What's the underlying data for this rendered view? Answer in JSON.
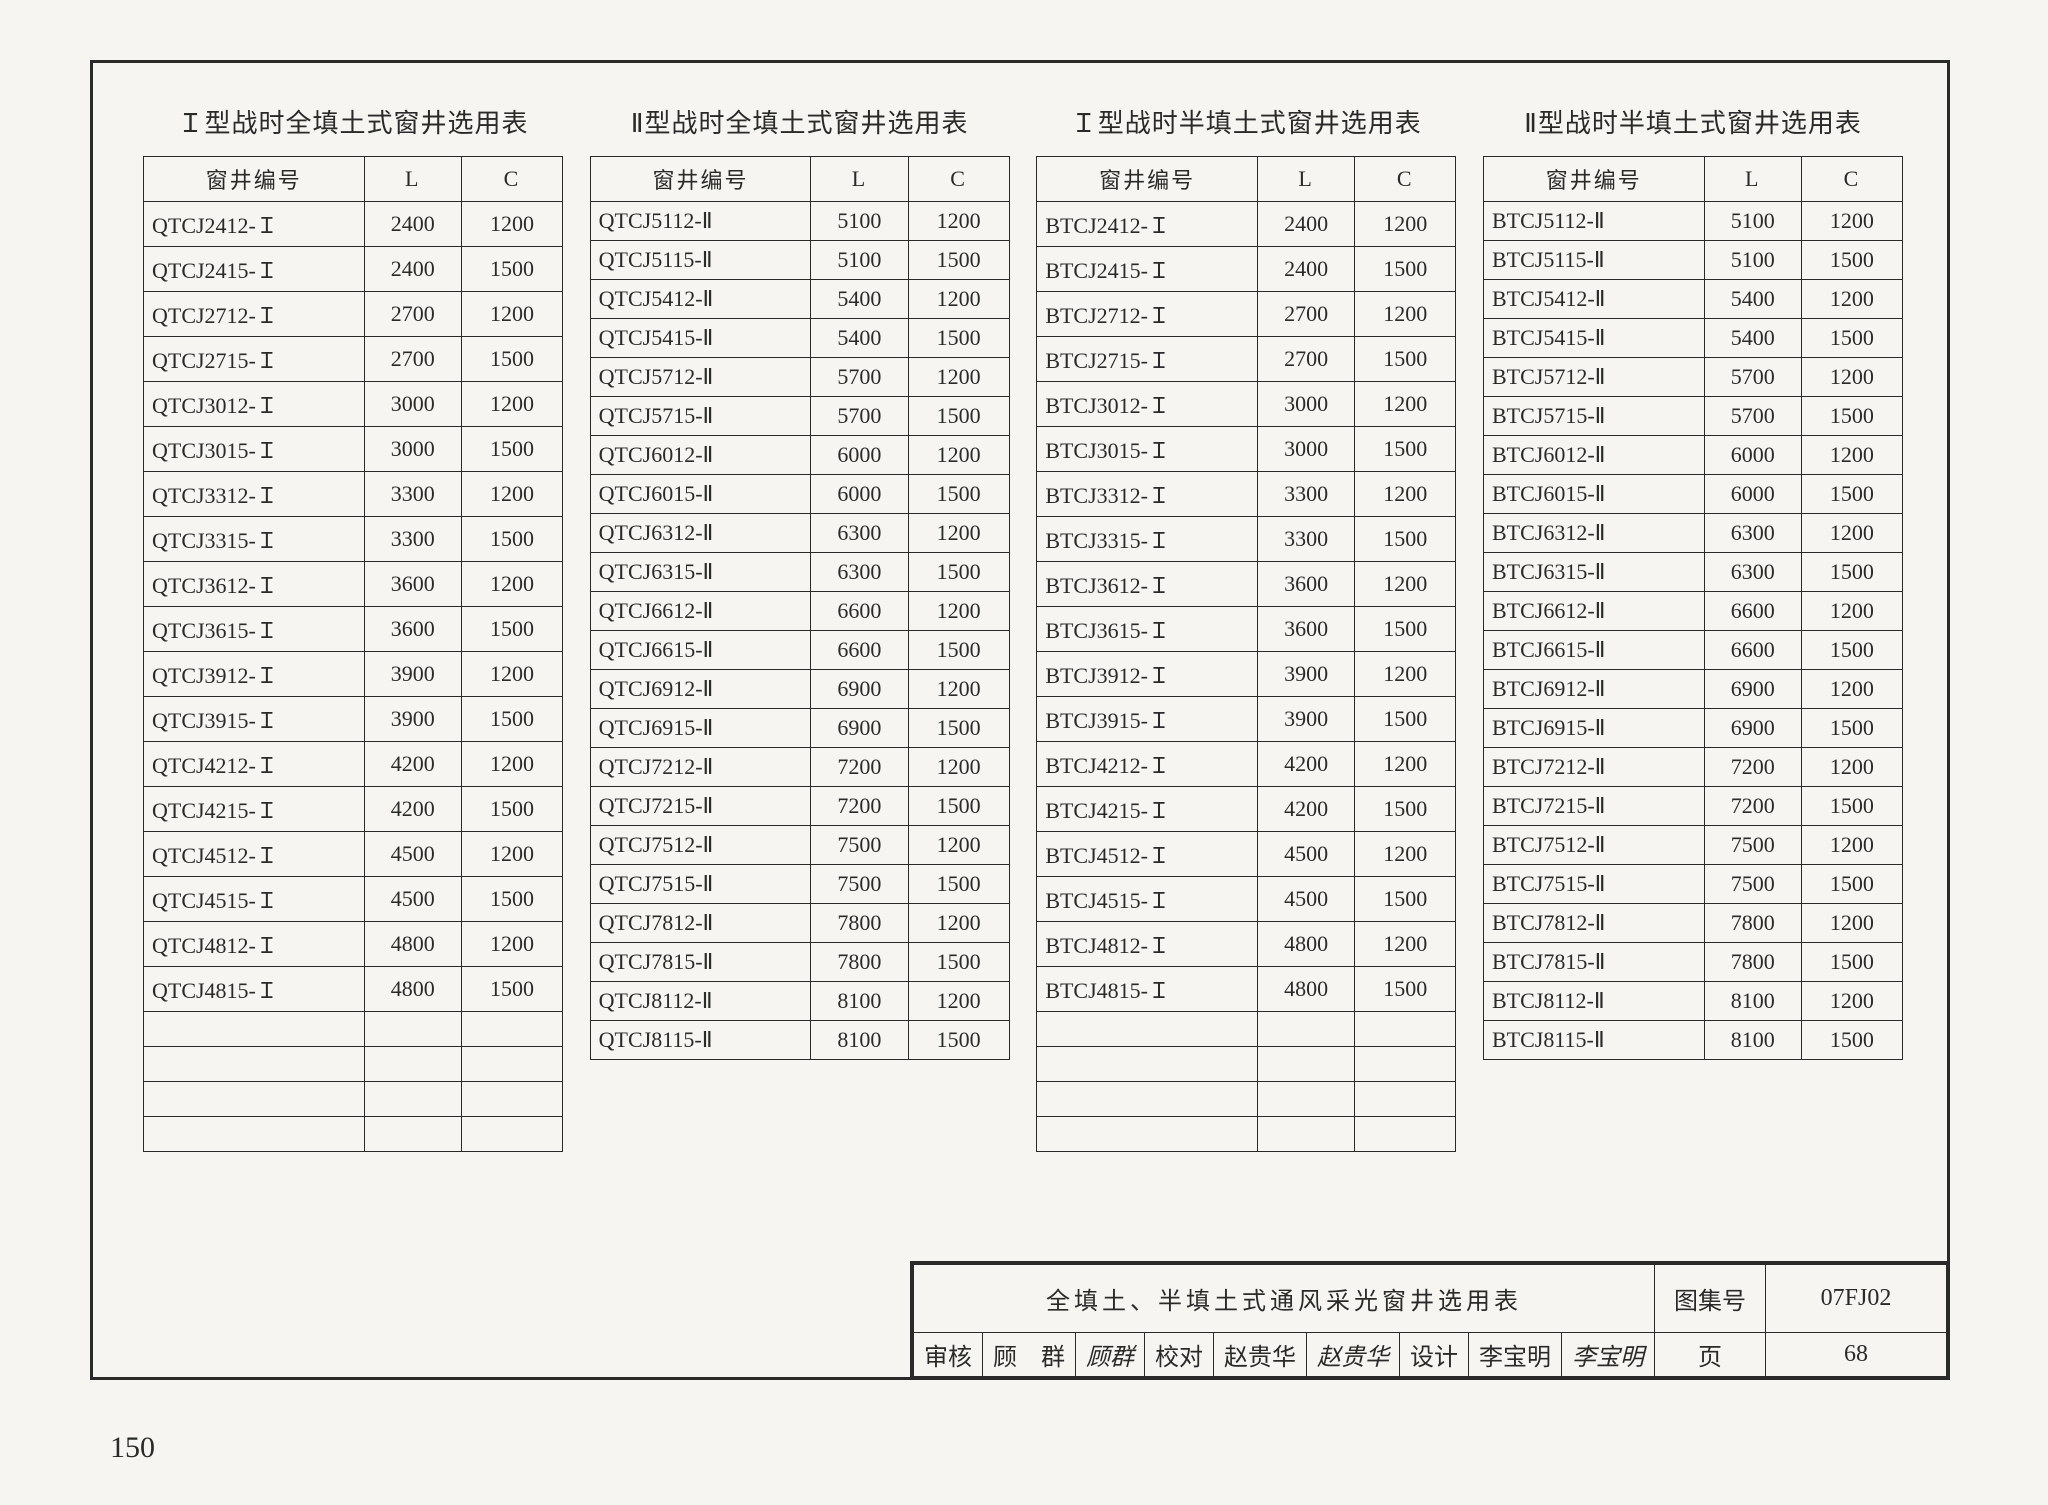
{
  "page_number": "150",
  "footer": {
    "main_title": "全填土、半填土式通风采光窗井选用表",
    "atlas_label": "图集号",
    "atlas_value": "07FJ02",
    "page_label": "页",
    "page_value": "68",
    "review_label": "审核",
    "review_name": "顾　群",
    "review_sig": "顾群",
    "check_label": "校对",
    "check_name": "赵贵华",
    "check_sig": "赵贵华",
    "design_label": "设计",
    "design_name": "李宝明",
    "design_sig": "李宝明"
  },
  "column_headers": {
    "id": "窗井编号",
    "L": "L",
    "C": "C"
  },
  "tables": [
    {
      "title": "Ｉ型战时全填土式窗井选用表",
      "rows": [
        {
          "id": "QTCJ2412-Ｉ",
          "L": "2400",
          "C": "1200"
        },
        {
          "id": "QTCJ2415-Ｉ",
          "L": "2400",
          "C": "1500"
        },
        {
          "id": "QTCJ2712-Ｉ",
          "L": "2700",
          "C": "1200"
        },
        {
          "id": "QTCJ2715-Ｉ",
          "L": "2700",
          "C": "1500"
        },
        {
          "id": "QTCJ3012-Ｉ",
          "L": "3000",
          "C": "1200"
        },
        {
          "id": "QTCJ3015-Ｉ",
          "L": "3000",
          "C": "1500"
        },
        {
          "id": "QTCJ3312-Ｉ",
          "L": "3300",
          "C": "1200"
        },
        {
          "id": "QTCJ3315-Ｉ",
          "L": "3300",
          "C": "1500"
        },
        {
          "id": "QTCJ3612-Ｉ",
          "L": "3600",
          "C": "1200"
        },
        {
          "id": "QTCJ3615-Ｉ",
          "L": "3600",
          "C": "1500"
        },
        {
          "id": "QTCJ3912-Ｉ",
          "L": "3900",
          "C": "1200"
        },
        {
          "id": "QTCJ3915-Ｉ",
          "L": "3900",
          "C": "1500"
        },
        {
          "id": "QTCJ4212-Ｉ",
          "L": "4200",
          "C": "1200"
        },
        {
          "id": "QTCJ4215-Ｉ",
          "L": "4200",
          "C": "1500"
        },
        {
          "id": "QTCJ4512-Ｉ",
          "L": "4500",
          "C": "1200"
        },
        {
          "id": "QTCJ4515-Ｉ",
          "L": "4500",
          "C": "1500"
        },
        {
          "id": "QTCJ4812-Ｉ",
          "L": "4800",
          "C": "1200"
        },
        {
          "id": "QTCJ4815-Ｉ",
          "L": "4800",
          "C": "1500"
        },
        {
          "id": "",
          "L": "",
          "C": ""
        },
        {
          "id": "",
          "L": "",
          "C": ""
        },
        {
          "id": "",
          "L": "",
          "C": ""
        },
        {
          "id": "",
          "L": "",
          "C": ""
        }
      ]
    },
    {
      "title": "Ⅱ型战时全填土式窗井选用表",
      "rows": [
        {
          "id": "QTCJ5112-Ⅱ",
          "L": "5100",
          "C": "1200"
        },
        {
          "id": "QTCJ5115-Ⅱ",
          "L": "5100",
          "C": "1500"
        },
        {
          "id": "QTCJ5412-Ⅱ",
          "L": "5400",
          "C": "1200"
        },
        {
          "id": "QTCJ5415-Ⅱ",
          "L": "5400",
          "C": "1500"
        },
        {
          "id": "QTCJ5712-Ⅱ",
          "L": "5700",
          "C": "1200"
        },
        {
          "id": "QTCJ5715-Ⅱ",
          "L": "5700",
          "C": "1500"
        },
        {
          "id": "QTCJ6012-Ⅱ",
          "L": "6000",
          "C": "1200"
        },
        {
          "id": "QTCJ6015-Ⅱ",
          "L": "6000",
          "C": "1500"
        },
        {
          "id": "QTCJ6312-Ⅱ",
          "L": "6300",
          "C": "1200"
        },
        {
          "id": "QTCJ6315-Ⅱ",
          "L": "6300",
          "C": "1500"
        },
        {
          "id": "QTCJ6612-Ⅱ",
          "L": "6600",
          "C": "1200"
        },
        {
          "id": "QTCJ6615-Ⅱ",
          "L": "6600",
          "C": "1500"
        },
        {
          "id": "QTCJ6912-Ⅱ",
          "L": "6900",
          "C": "1200"
        },
        {
          "id": "QTCJ6915-Ⅱ",
          "L": "6900",
          "C": "1500"
        },
        {
          "id": "QTCJ7212-Ⅱ",
          "L": "7200",
          "C": "1200"
        },
        {
          "id": "QTCJ7215-Ⅱ",
          "L": "7200",
          "C": "1500"
        },
        {
          "id": "QTCJ7512-Ⅱ",
          "L": "7500",
          "C": "1200"
        },
        {
          "id": "QTCJ7515-Ⅱ",
          "L": "7500",
          "C": "1500"
        },
        {
          "id": "QTCJ7812-Ⅱ",
          "L": "7800",
          "C": "1200"
        },
        {
          "id": "QTCJ7815-Ⅱ",
          "L": "7800",
          "C": "1500"
        },
        {
          "id": "QTCJ8112-Ⅱ",
          "L": "8100",
          "C": "1200"
        },
        {
          "id": "QTCJ8115-Ⅱ",
          "L": "8100",
          "C": "1500"
        }
      ]
    },
    {
      "title": "Ｉ型战时半填土式窗井选用表",
      "rows": [
        {
          "id": "BTCJ2412-Ｉ",
          "L": "2400",
          "C": "1200"
        },
        {
          "id": "BTCJ2415-Ｉ",
          "L": "2400",
          "C": "1500"
        },
        {
          "id": "BTCJ2712-Ｉ",
          "L": "2700",
          "C": "1200"
        },
        {
          "id": "BTCJ2715-Ｉ",
          "L": "2700",
          "C": "1500"
        },
        {
          "id": "BTCJ3012-Ｉ",
          "L": "3000",
          "C": "1200"
        },
        {
          "id": "BTCJ3015-Ｉ",
          "L": "3000",
          "C": "1500"
        },
        {
          "id": "BTCJ3312-Ｉ",
          "L": "3300",
          "C": "1200"
        },
        {
          "id": "BTCJ3315-Ｉ",
          "L": "3300",
          "C": "1500"
        },
        {
          "id": "BTCJ3612-Ｉ",
          "L": "3600",
          "C": "1200"
        },
        {
          "id": "BTCJ3615-Ｉ",
          "L": "3600",
          "C": "1500"
        },
        {
          "id": "BTCJ3912-Ｉ",
          "L": "3900",
          "C": "1200"
        },
        {
          "id": "BTCJ3915-Ｉ",
          "L": "3900",
          "C": "1500"
        },
        {
          "id": "BTCJ4212-Ｉ",
          "L": "4200",
          "C": "1200"
        },
        {
          "id": "BTCJ4215-Ｉ",
          "L": "4200",
          "C": "1500"
        },
        {
          "id": "BTCJ4512-Ｉ",
          "L": "4500",
          "C": "1200"
        },
        {
          "id": "BTCJ4515-Ｉ",
          "L": "4500",
          "C": "1500"
        },
        {
          "id": "BTCJ4812-Ｉ",
          "L": "4800",
          "C": "1200"
        },
        {
          "id": "BTCJ4815-Ｉ",
          "L": "4800",
          "C": "1500"
        },
        {
          "id": "",
          "L": "",
          "C": ""
        },
        {
          "id": "",
          "L": "",
          "C": ""
        },
        {
          "id": "",
          "L": "",
          "C": ""
        },
        {
          "id": "",
          "L": "",
          "C": ""
        }
      ]
    },
    {
      "title": "Ⅱ型战时半填土式窗井选用表",
      "rows": [
        {
          "id": "BTCJ5112-Ⅱ",
          "L": "5100",
          "C": "1200"
        },
        {
          "id": "BTCJ5115-Ⅱ",
          "L": "5100",
          "C": "1500"
        },
        {
          "id": "BTCJ5412-Ⅱ",
          "L": "5400",
          "C": "1200"
        },
        {
          "id": "BTCJ5415-Ⅱ",
          "L": "5400",
          "C": "1500"
        },
        {
          "id": "BTCJ5712-Ⅱ",
          "L": "5700",
          "C": "1200"
        },
        {
          "id": "BTCJ5715-Ⅱ",
          "L": "5700",
          "C": "1500"
        },
        {
          "id": "BTCJ6012-Ⅱ",
          "L": "6000",
          "C": "1200"
        },
        {
          "id": "BTCJ6015-Ⅱ",
          "L": "6000",
          "C": "1500"
        },
        {
          "id": "BTCJ6312-Ⅱ",
          "L": "6300",
          "C": "1200"
        },
        {
          "id": "BTCJ6315-Ⅱ",
          "L": "6300",
          "C": "1500"
        },
        {
          "id": "BTCJ6612-Ⅱ",
          "L": "6600",
          "C": "1200"
        },
        {
          "id": "BTCJ6615-Ⅱ",
          "L": "6600",
          "C": "1500"
        },
        {
          "id": "BTCJ6912-Ⅱ",
          "L": "6900",
          "C": "1200"
        },
        {
          "id": "BTCJ6915-Ⅱ",
          "L": "6900",
          "C": "1500"
        },
        {
          "id": "BTCJ7212-Ⅱ",
          "L": "7200",
          "C": "1200"
        },
        {
          "id": "BTCJ7215-Ⅱ",
          "L": "7200",
          "C": "1500"
        },
        {
          "id": "BTCJ7512-Ⅱ",
          "L": "7500",
          "C": "1200"
        },
        {
          "id": "BTCJ7515-Ⅱ",
          "L": "7500",
          "C": "1500"
        },
        {
          "id": "BTCJ7812-Ⅱ",
          "L": "7800",
          "C": "1200"
        },
        {
          "id": "BTCJ7815-Ⅱ",
          "L": "7800",
          "C": "1500"
        },
        {
          "id": "BTCJ8112-Ⅱ",
          "L": "8100",
          "C": "1200"
        },
        {
          "id": "BTCJ8115-Ⅱ",
          "L": "8100",
          "C": "1500"
        }
      ]
    }
  ]
}
